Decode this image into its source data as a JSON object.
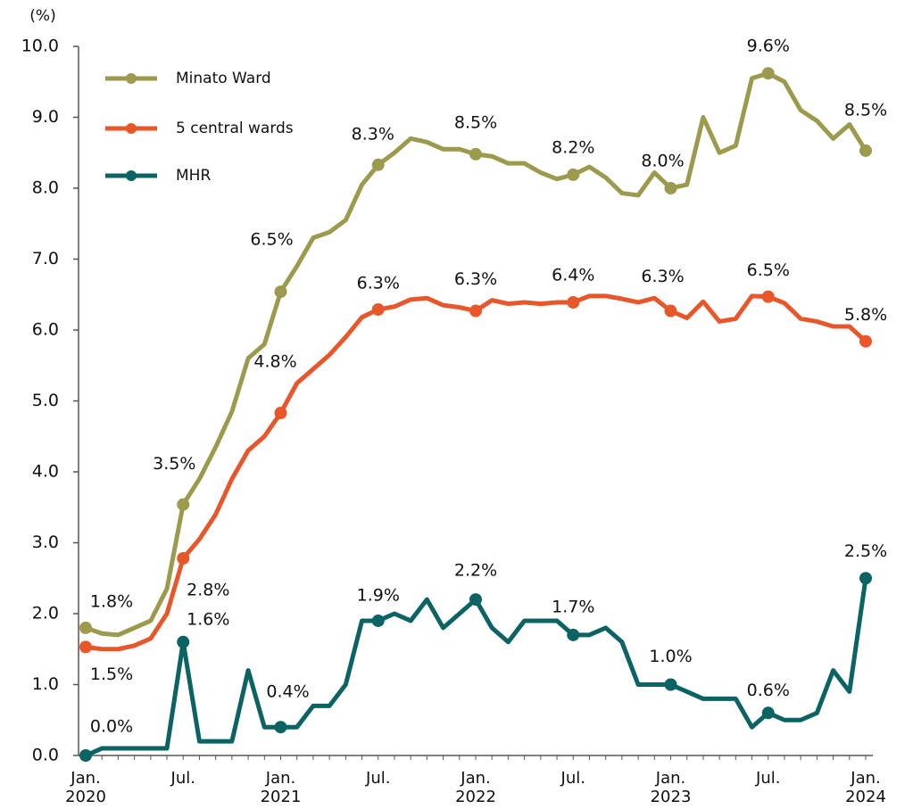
{
  "chart_data": {
    "type": "line",
    "y_axis_label": "(%)",
    "categories": [
      "Jan.\n2020",
      null,
      null,
      null,
      null,
      null,
      "Jul.",
      null,
      null,
      null,
      null,
      null,
      "Jan.\n2021",
      null,
      null,
      null,
      null,
      null,
      "Jul.",
      null,
      null,
      null,
      null,
      null,
      "Jan.\n2022",
      null,
      null,
      null,
      null,
      null,
      "Jul.",
      null,
      null,
      null,
      null,
      null,
      "Jan.\n2023",
      null,
      null,
      null,
      null,
      null,
      "Jul.",
      null,
      null,
      null,
      null,
      null,
      "Jan.\n2024"
    ],
    "series": [
      {
        "name": "Minato Ward",
        "color": "#9c9a4c",
        "values": [
          1.8,
          1.72,
          1.7,
          1.8,
          1.9,
          2.35,
          3.54,
          3.9,
          4.35,
          4.85,
          5.6,
          5.8,
          6.54,
          6.9,
          7.3,
          7.38,
          7.55,
          8.05,
          8.33,
          8.5,
          8.7,
          8.65,
          8.55,
          8.55,
          8.48,
          8.45,
          8.35,
          8.35,
          8.22,
          8.13,
          8.19,
          8.3,
          8.15,
          7.93,
          7.9,
          8.22,
          8.0,
          8.05,
          9.0,
          8.5,
          8.6,
          9.55,
          9.62,
          9.5,
          9.1,
          8.95,
          8.7,
          8.9,
          8.53
        ],
        "value_labels": [
          "1.8%",
          null,
          null,
          null,
          null,
          null,
          "3.5%",
          null,
          null,
          null,
          null,
          null,
          "6.5%",
          null,
          null,
          null,
          null,
          null,
          "8.3%",
          null,
          null,
          null,
          null,
          null,
          "8.5%",
          null,
          null,
          null,
          null,
          null,
          "8.2%",
          null,
          null,
          null,
          null,
          null,
          "8.0%",
          null,
          null,
          null,
          null,
          null,
          "9.6%",
          null,
          null,
          null,
          null,
          null,
          "8.5%"
        ]
      },
      {
        "name": "5 central wards",
        "color": "#e8572a",
        "values": [
          1.53,
          1.5,
          1.5,
          1.55,
          1.65,
          2.0,
          2.78,
          3.05,
          3.4,
          3.9,
          4.3,
          4.5,
          4.83,
          5.25,
          5.45,
          5.65,
          5.9,
          6.18,
          6.29,
          6.33,
          6.43,
          6.45,
          6.35,
          6.32,
          6.27,
          6.42,
          6.37,
          6.39,
          6.37,
          6.39,
          6.39,
          6.48,
          6.48,
          6.44,
          6.39,
          6.45,
          6.27,
          6.17,
          6.4,
          6.12,
          6.16,
          6.48,
          6.47,
          6.38,
          6.16,
          6.12,
          6.05,
          6.05,
          5.84
        ],
        "value_labels": [
          "1.5%",
          null,
          null,
          null,
          null,
          null,
          "2.8%",
          null,
          null,
          null,
          null,
          null,
          "4.8%",
          null,
          null,
          null,
          null,
          null,
          "6.3%",
          null,
          null,
          null,
          null,
          null,
          "6.3%",
          null,
          null,
          null,
          null,
          null,
          "6.4%",
          null,
          null,
          null,
          null,
          null,
          "6.3%",
          null,
          null,
          null,
          null,
          null,
          "6.5%",
          null,
          null,
          null,
          null,
          null,
          "5.8%"
        ]
      },
      {
        "name": "MHR",
        "color": "#0b6363",
        "values": [
          0.0,
          0.1,
          0.1,
          0.1,
          0.1,
          0.1,
          1.6,
          0.2,
          0.2,
          0.2,
          1.2,
          0.4,
          0.4,
          0.4,
          0.7,
          0.7,
          1.0,
          1.9,
          1.9,
          2.0,
          1.9,
          2.2,
          1.8,
          2.0,
          2.2,
          1.8,
          1.6,
          1.9,
          1.9,
          1.9,
          1.7,
          1.7,
          1.8,
          1.6,
          1.0,
          1.0,
          1.0,
          0.9,
          0.8,
          0.8,
          0.8,
          0.4,
          0.6,
          0.5,
          0.5,
          0.6,
          1.2,
          0.9,
          2.5
        ],
        "value_labels": [
          "0.0%",
          null,
          null,
          null,
          null,
          null,
          "1.6%",
          null,
          null,
          null,
          null,
          null,
          "0.4%",
          null,
          null,
          null,
          null,
          null,
          "1.9%",
          null,
          null,
          null,
          null,
          null,
          "2.2%",
          null,
          null,
          null,
          null,
          null,
          "1.7%",
          null,
          null,
          null,
          null,
          null,
          "1.0%",
          null,
          null,
          null,
          null,
          null,
          "0.6%",
          null,
          null,
          null,
          null,
          null,
          "2.5%"
        ]
      }
    ],
    "ylim": [
      0,
      10
    ],
    "yticks": [
      {
        "value": 0,
        "label": "0.0"
      },
      {
        "value": 1,
        "label": "1.0"
      },
      {
        "value": 2,
        "label": "2.0"
      },
      {
        "value": 3,
        "label": "3.0"
      },
      {
        "value": 4,
        "label": "4.0"
      },
      {
        "value": 5,
        "label": "5.0"
      },
      {
        "value": 6,
        "label": "6.0"
      },
      {
        "value": 7,
        "label": "7.0"
      },
      {
        "value": 8,
        "label": "8.0"
      },
      {
        "value": 9,
        "label": "9.0"
      },
      {
        "value": 10,
        "label": "10.0"
      }
    ],
    "legend": "top-left"
  }
}
